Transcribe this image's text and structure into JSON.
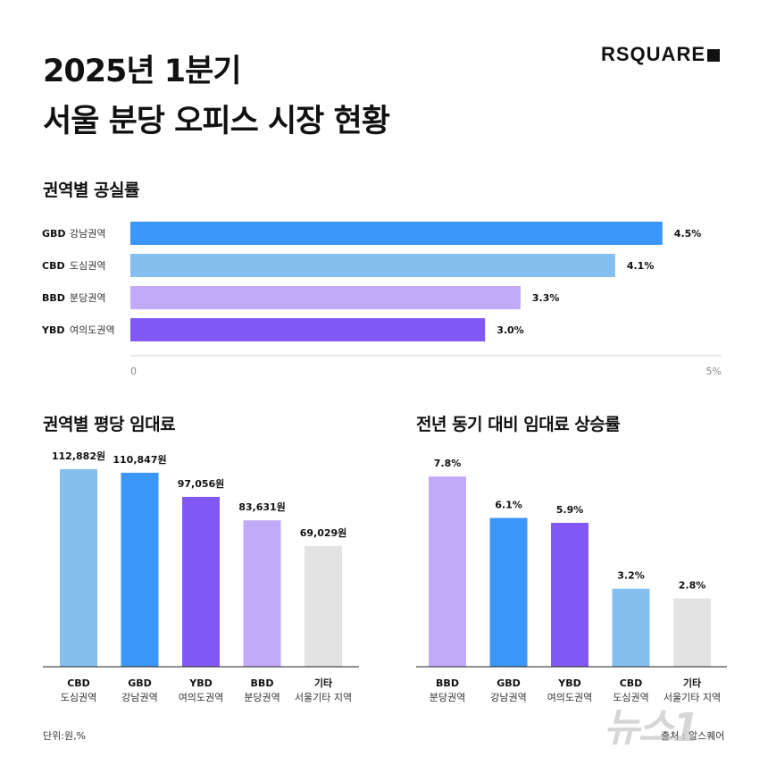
{
  "title": {
    "line1": "2025년 1분기",
    "line2": "서울 분당 오피스 시장 현황"
  },
  "logo": "RSQUARE",
  "vacancy": {
    "heading": "권역별 공실률",
    "chart_data": {
      "type": "bar",
      "orientation": "horizontal",
      "categories": [
        {
          "code": "GBD",
          "name": "강남권역"
        },
        {
          "code": "CBD",
          "name": "도심권역"
        },
        {
          "code": "BBD",
          "name": "분당권역"
        },
        {
          "code": "YBD",
          "name": "여의도권역"
        }
      ],
      "values": [
        4.5,
        4.1,
        3.3,
        3.0
      ],
      "value_labels": [
        "4.5%",
        "4.1%",
        "3.3%",
        "3.0%"
      ],
      "colors": [
        "#3a97f7",
        "#84bff0",
        "#c3aaf9",
        "#8159f7"
      ],
      "xlim": [
        0,
        5
      ],
      "tick_labels": [
        "0",
        "5%"
      ],
      "grid": false
    }
  },
  "rent": {
    "heading": "권역별 평당 임대료",
    "chart_data": {
      "type": "bar",
      "categories": [
        {
          "code": "CBD",
          "name": "도심권역"
        },
        {
          "code": "GBD",
          "name": "강남권역"
        },
        {
          "code": "YBD",
          "name": "여의도권역"
        },
        {
          "code": "BBD",
          "name": "분당권역"
        },
        {
          "code": "기타",
          "name": "서울기타 지역"
        }
      ],
      "values": [
        112882,
        110847,
        97056,
        83631,
        69029
      ],
      "value_labels": [
        "112,882원",
        "110,847원",
        "97,056원",
        "83,631원",
        "69,029원"
      ],
      "colors": [
        "#84bff0",
        "#3a97f7",
        "#8159f7",
        "#c3aaf9",
        "#e3e3e3"
      ],
      "ylim": [
        0,
        120000
      ],
      "grid": false
    }
  },
  "growth": {
    "heading": "전년 동기 대비 임대료 상승률",
    "chart_data": {
      "type": "bar",
      "categories": [
        {
          "code": "BBD",
          "name": "분당권역"
        },
        {
          "code": "GBD",
          "name": "강남권역"
        },
        {
          "code": "YBD",
          "name": "여의도권역"
        },
        {
          "code": "CBD",
          "name": "도심권역"
        },
        {
          "code": "기타",
          "name": "서울기타 지역"
        }
      ],
      "values": [
        7.8,
        6.1,
        5.9,
        3.2,
        2.8
      ],
      "value_labels": [
        "7.8%",
        "6.1%",
        "5.9%",
        "3.2%",
        "2.8%"
      ],
      "colors": [
        "#c3aaf9",
        "#3a97f7",
        "#8159f7",
        "#84bff0",
        "#e3e3e3"
      ],
      "ylim": [
        0,
        8.5
      ],
      "grid": false
    }
  },
  "footer": {
    "unit": "단위:원,%",
    "source": "출처 : 알스퀘어",
    "watermark": "뉴스1"
  }
}
